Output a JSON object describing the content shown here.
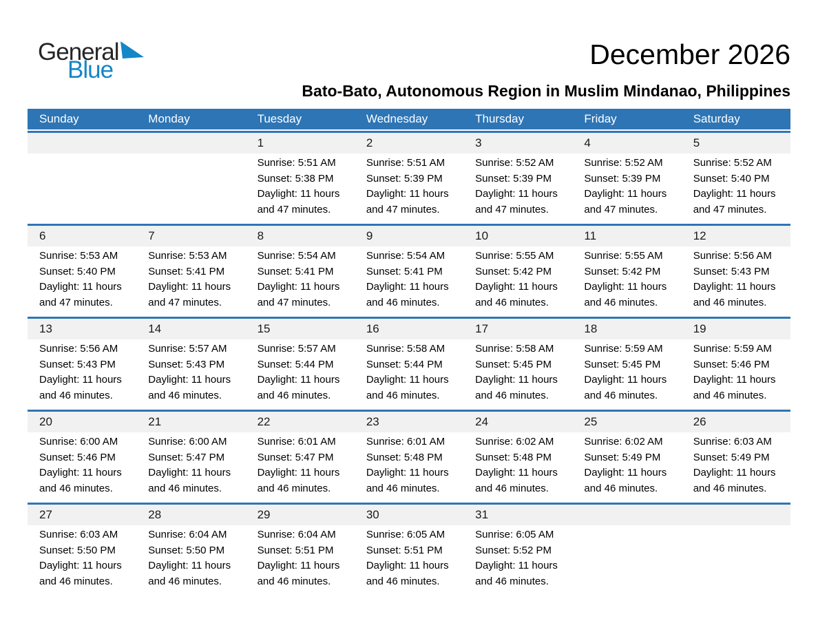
{
  "logo": {
    "line1": "General",
    "line2": "Blue",
    "triangle_icon": "blue-flag-triangle"
  },
  "header": {
    "title": "December 2026",
    "subtitle": "Bato-Bato, Autonomous Region in Muslim Mindanao, Philippines"
  },
  "colors": {
    "header_bg": "#2E75B5",
    "divider": "#2E75B5",
    "strip_bg": "#F1F1F1",
    "logo_blue": "#1586C8",
    "header_text": "#FFFFFF"
  },
  "weekdays": [
    "Sunday",
    "Monday",
    "Tuesday",
    "Wednesday",
    "Thursday",
    "Friday",
    "Saturday"
  ],
  "weeks": [
    [
      {
        "day": "",
        "lines": []
      },
      {
        "day": "",
        "lines": []
      },
      {
        "day": "1",
        "lines": [
          "Sunrise: 5:51 AM",
          "Sunset: 5:38 PM",
          "Daylight: 11 hours",
          "and 47 minutes."
        ]
      },
      {
        "day": "2",
        "lines": [
          "Sunrise: 5:51 AM",
          "Sunset: 5:39 PM",
          "Daylight: 11 hours",
          "and 47 minutes."
        ]
      },
      {
        "day": "3",
        "lines": [
          "Sunrise: 5:52 AM",
          "Sunset: 5:39 PM",
          "Daylight: 11 hours",
          "and 47 minutes."
        ]
      },
      {
        "day": "4",
        "lines": [
          "Sunrise: 5:52 AM",
          "Sunset: 5:39 PM",
          "Daylight: 11 hours",
          "and 47 minutes."
        ]
      },
      {
        "day": "5",
        "lines": [
          "Sunrise: 5:52 AM",
          "Sunset: 5:40 PM",
          "Daylight: 11 hours",
          "and 47 minutes."
        ]
      }
    ],
    [
      {
        "day": "6",
        "lines": [
          "Sunrise: 5:53 AM",
          "Sunset: 5:40 PM",
          "Daylight: 11 hours",
          "and 47 minutes."
        ]
      },
      {
        "day": "7",
        "lines": [
          "Sunrise: 5:53 AM",
          "Sunset: 5:41 PM",
          "Daylight: 11 hours",
          "and 47 minutes."
        ]
      },
      {
        "day": "8",
        "lines": [
          "Sunrise: 5:54 AM",
          "Sunset: 5:41 PM",
          "Daylight: 11 hours",
          "and 47 minutes."
        ]
      },
      {
        "day": "9",
        "lines": [
          "Sunrise: 5:54 AM",
          "Sunset: 5:41 PM",
          "Daylight: 11 hours",
          "and 46 minutes."
        ]
      },
      {
        "day": "10",
        "lines": [
          "Sunrise: 5:55 AM",
          "Sunset: 5:42 PM",
          "Daylight: 11 hours",
          "and 46 minutes."
        ]
      },
      {
        "day": "11",
        "lines": [
          "Sunrise: 5:55 AM",
          "Sunset: 5:42 PM",
          "Daylight: 11 hours",
          "and 46 minutes."
        ]
      },
      {
        "day": "12",
        "lines": [
          "Sunrise: 5:56 AM",
          "Sunset: 5:43 PM",
          "Daylight: 11 hours",
          "and 46 minutes."
        ]
      }
    ],
    [
      {
        "day": "13",
        "lines": [
          "Sunrise: 5:56 AM",
          "Sunset: 5:43 PM",
          "Daylight: 11 hours",
          "and 46 minutes."
        ]
      },
      {
        "day": "14",
        "lines": [
          "Sunrise: 5:57 AM",
          "Sunset: 5:43 PM",
          "Daylight: 11 hours",
          "and 46 minutes."
        ]
      },
      {
        "day": "15",
        "lines": [
          "Sunrise: 5:57 AM",
          "Sunset: 5:44 PM",
          "Daylight: 11 hours",
          "and 46 minutes."
        ]
      },
      {
        "day": "16",
        "lines": [
          "Sunrise: 5:58 AM",
          "Sunset: 5:44 PM",
          "Daylight: 11 hours",
          "and 46 minutes."
        ]
      },
      {
        "day": "17",
        "lines": [
          "Sunrise: 5:58 AM",
          "Sunset: 5:45 PM",
          "Daylight: 11 hours",
          "and 46 minutes."
        ]
      },
      {
        "day": "18",
        "lines": [
          "Sunrise: 5:59 AM",
          "Sunset: 5:45 PM",
          "Daylight: 11 hours",
          "and 46 minutes."
        ]
      },
      {
        "day": "19",
        "lines": [
          "Sunrise: 5:59 AM",
          "Sunset: 5:46 PM",
          "Daylight: 11 hours",
          "and 46 minutes."
        ]
      }
    ],
    [
      {
        "day": "20",
        "lines": [
          "Sunrise: 6:00 AM",
          "Sunset: 5:46 PM",
          "Daylight: 11 hours",
          "and 46 minutes."
        ]
      },
      {
        "day": "21",
        "lines": [
          "Sunrise: 6:00 AM",
          "Sunset: 5:47 PM",
          "Daylight: 11 hours",
          "and 46 minutes."
        ]
      },
      {
        "day": "22",
        "lines": [
          "Sunrise: 6:01 AM",
          "Sunset: 5:47 PM",
          "Daylight: 11 hours",
          "and 46 minutes."
        ]
      },
      {
        "day": "23",
        "lines": [
          "Sunrise: 6:01 AM",
          "Sunset: 5:48 PM",
          "Daylight: 11 hours",
          "and 46 minutes."
        ]
      },
      {
        "day": "24",
        "lines": [
          "Sunrise: 6:02 AM",
          "Sunset: 5:48 PM",
          "Daylight: 11 hours",
          "and 46 minutes."
        ]
      },
      {
        "day": "25",
        "lines": [
          "Sunrise: 6:02 AM",
          "Sunset: 5:49 PM",
          "Daylight: 11 hours",
          "and 46 minutes."
        ]
      },
      {
        "day": "26",
        "lines": [
          "Sunrise: 6:03 AM",
          "Sunset: 5:49 PM",
          "Daylight: 11 hours",
          "and 46 minutes."
        ]
      }
    ],
    [
      {
        "day": "27",
        "lines": [
          "Sunrise: 6:03 AM",
          "Sunset: 5:50 PM",
          "Daylight: 11 hours",
          "and 46 minutes."
        ]
      },
      {
        "day": "28",
        "lines": [
          "Sunrise: 6:04 AM",
          "Sunset: 5:50 PM",
          "Daylight: 11 hours",
          "and 46 minutes."
        ]
      },
      {
        "day": "29",
        "lines": [
          "Sunrise: 6:04 AM",
          "Sunset: 5:51 PM",
          "Daylight: 11 hours",
          "and 46 minutes."
        ]
      },
      {
        "day": "30",
        "lines": [
          "Sunrise: 6:05 AM",
          "Sunset: 5:51 PM",
          "Daylight: 11 hours",
          "and 46 minutes."
        ]
      },
      {
        "day": "31",
        "lines": [
          "Sunrise: 6:05 AM",
          "Sunset: 5:52 PM",
          "Daylight: 11 hours",
          "and 46 minutes."
        ]
      },
      {
        "day": "",
        "lines": []
      },
      {
        "day": "",
        "lines": []
      }
    ]
  ]
}
